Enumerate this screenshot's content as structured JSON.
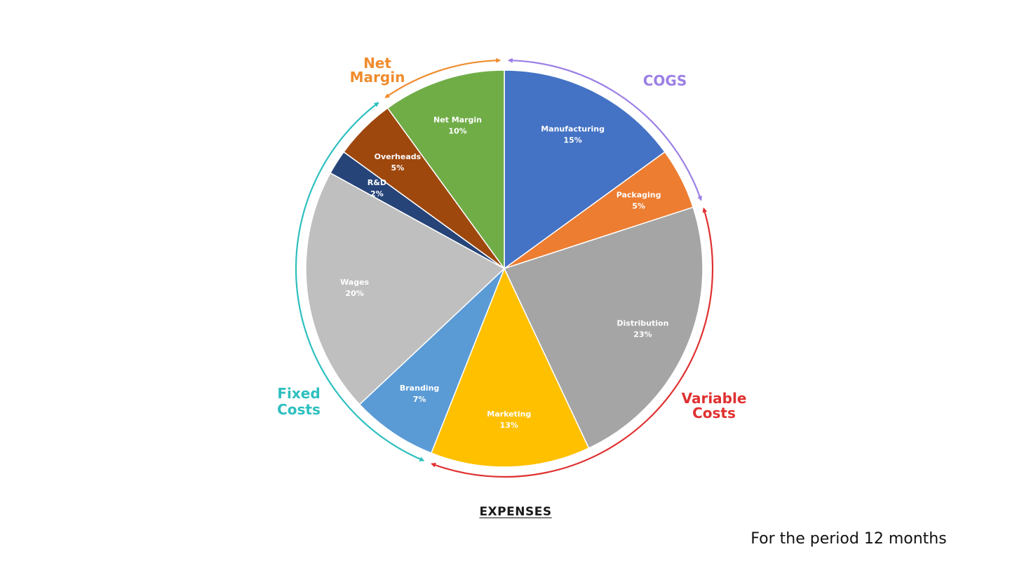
{
  "chart_data": {
    "type": "pie",
    "title": "EXPENSES",
    "slices": [
      {
        "name": "Manufacturing",
        "value": 15,
        "label": "15%",
        "color": "#4472C4"
      },
      {
        "name": "Packaging",
        "value": 5,
        "label": "5%",
        "color": "#ED7D31"
      },
      {
        "name": "Distribution",
        "value": 23,
        "label": "23%",
        "color": "#A5A5A5"
      },
      {
        "name": "Marketing",
        "value": 13,
        "label": "13%",
        "color": "#FFC000"
      },
      {
        "name": "Branding",
        "value": 7,
        "label": "7%",
        "color": "#5B9BD5"
      },
      {
        "name": "Wages",
        "value": 20,
        "label": "20%",
        "color": "#BFBFBF"
      },
      {
        "name": "R&D",
        "value": 2,
        "label": "2%",
        "color": "#264478"
      },
      {
        "name": "Overheads",
        "value": 5,
        "label": "5%",
        "color": "#9E480E"
      },
      {
        "name": "Net Margin",
        "value": 10,
        "label": "10%",
        "color": "#70AD47"
      }
    ],
    "groups": [
      {
        "lines": [
          "COGS"
        ],
        "color": "#9B7FE6",
        "slices": [
          "Manufacturing",
          "Packaging"
        ]
      },
      {
        "lines": [
          "Variable",
          "Costs"
        ],
        "color": "#E03030",
        "slices": [
          "Distribution",
          "Marketing"
        ]
      },
      {
        "lines": [
          "Fixed",
          "Costs"
        ],
        "color": "#2EBFBF",
        "slices": [
          "Branding",
          "Wages",
          "R&D",
          "Overheads"
        ]
      },
      {
        "lines": [
          "Net",
          "Margin"
        ],
        "color": "#F08C2E",
        "slices": [
          "Net Margin"
        ]
      }
    ]
  },
  "footer": {
    "period_note": "For the period 12 months"
  }
}
